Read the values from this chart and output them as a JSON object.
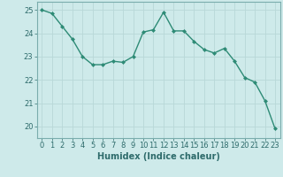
{
  "x": [
    0,
    1,
    2,
    3,
    4,
    5,
    6,
    7,
    8,
    9,
    10,
    11,
    12,
    13,
    14,
    15,
    16,
    17,
    18,
    19,
    20,
    21,
    22,
    23
  ],
  "y": [
    25.0,
    24.85,
    24.3,
    23.75,
    23.0,
    22.65,
    22.65,
    22.8,
    22.75,
    23.0,
    24.05,
    24.15,
    24.9,
    24.1,
    24.1,
    23.65,
    23.3,
    23.15,
    23.35,
    22.8,
    22.1,
    21.9,
    21.1,
    19.9
  ],
  "line_color": "#2e8b76",
  "marker": "D",
  "markersize": 2.0,
  "linewidth": 1.0,
  "xlabel": "Humidex (Indice chaleur)",
  "xlim": [
    -0.5,
    23.5
  ],
  "ylim": [
    19.5,
    25.35
  ],
  "yticks": [
    20,
    21,
    22,
    23,
    24,
    25
  ],
  "xticks": [
    0,
    1,
    2,
    3,
    4,
    5,
    6,
    7,
    8,
    9,
    10,
    11,
    12,
    13,
    14,
    15,
    16,
    17,
    18,
    19,
    20,
    21,
    22,
    23
  ],
  "bg_color": "#ceeaea",
  "grid_color": "#b8d8d8",
  "text_color": "#2e6b6b",
  "axis_color": "#7aadad",
  "xlabel_fontsize": 7.0,
  "tick_fontsize": 6.0
}
